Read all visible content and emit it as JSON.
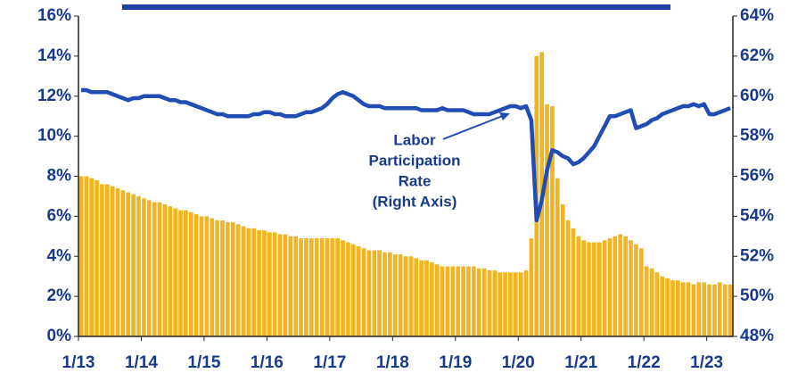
{
  "chart_data": {
    "type": "bar",
    "categories": [
      "1/13",
      null,
      null,
      null,
      null,
      null,
      null,
      null,
      null,
      null,
      null,
      null,
      "1/14",
      null,
      null,
      null,
      null,
      null,
      null,
      null,
      null,
      null,
      null,
      null,
      "1/15",
      null,
      null,
      null,
      null,
      null,
      null,
      null,
      null,
      null,
      null,
      null,
      "1/16",
      null,
      null,
      null,
      null,
      null,
      null,
      null,
      null,
      null,
      null,
      null,
      "1/17",
      null,
      null,
      null,
      null,
      null,
      null,
      null,
      null,
      null,
      null,
      null,
      "1/18",
      null,
      null,
      null,
      null,
      null,
      null,
      null,
      null,
      null,
      null,
      null,
      "1/19",
      null,
      null,
      null,
      null,
      null,
      null,
      null,
      null,
      null,
      null,
      null,
      "1/20",
      null,
      null,
      null,
      null,
      null,
      null,
      null,
      null,
      null,
      null,
      null,
      "1/21",
      null,
      null,
      null,
      null,
      null,
      null,
      null,
      null,
      null,
      null,
      null,
      "1/22",
      null,
      null,
      null,
      null,
      null,
      null,
      null,
      null,
      null,
      null,
      null,
      "1/23",
      null,
      null,
      null,
      null
    ],
    "series": [
      {
        "color": "#f2b51f",
        "values": [
          8.0,
          8.0,
          7.9,
          7.8,
          7.6,
          7.6,
          7.5,
          7.4,
          7.3,
          7.2,
          7.1,
          7.0,
          6.9,
          6.8,
          6.7,
          6.7,
          6.6,
          6.5,
          6.4,
          6.3,
          6.3,
          6.2,
          6.1,
          6.0,
          6.0,
          5.9,
          5.8,
          5.8,
          5.7,
          5.7,
          5.6,
          5.5,
          5.4,
          5.4,
          5.3,
          5.3,
          5.2,
          5.2,
          5.1,
          5.1,
          5.0,
          5.0,
          4.9,
          4.9,
          4.9,
          4.9,
          4.9,
          4.9,
          4.9,
          4.9,
          4.8,
          4.7,
          4.6,
          4.5,
          4.4,
          4.3,
          4.3,
          4.3,
          4.2,
          4.2,
          4.1,
          4.1,
          4.0,
          4.0,
          3.9,
          3.8,
          3.8,
          3.7,
          3.6,
          3.5,
          3.5,
          3.5,
          3.5,
          3.5,
          3.5,
          3.5,
          3.4,
          3.4,
          3.3,
          3.3,
          3.2,
          3.2,
          3.2,
          3.2,
          3.2,
          3.3,
          4.9,
          14.0,
          14.2,
          11.6,
          11.5,
          7.9,
          6.6,
          5.8,
          5.4,
          5.0,
          4.8,
          4.7,
          4.7,
          4.7,
          4.8,
          4.9,
          5.0,
          5.1,
          5.0,
          4.8,
          4.6,
          4.4,
          3.5,
          3.4,
          3.2,
          3.0,
          2.9,
          2.8,
          2.8,
          2.7,
          2.7,
          2.6,
          2.7,
          2.7,
          2.6,
          2.6,
          2.7,
          2.6,
          2.6
        ]
      },
      {
        "type": "line",
        "axis": "y2",
        "color": "#1f4db3",
        "values": [
          60.3,
          60.3,
          60.2,
          60.2,
          60.2,
          60.2,
          60.1,
          60.0,
          59.9,
          59.8,
          59.9,
          59.9,
          60.0,
          60.0,
          60.0,
          60.0,
          59.9,
          59.8,
          59.8,
          59.7,
          59.7,
          59.6,
          59.5,
          59.4,
          59.3,
          59.2,
          59.1,
          59.1,
          59.0,
          59.0,
          59.0,
          59.0,
          59.0,
          59.1,
          59.1,
          59.2,
          59.2,
          59.1,
          59.1,
          59.0,
          59.0,
          59.0,
          59.1,
          59.2,
          59.2,
          59.3,
          59.4,
          59.6,
          59.9,
          60.1,
          60.2,
          60.1,
          60.0,
          59.8,
          59.6,
          59.5,
          59.5,
          59.5,
          59.4,
          59.4,
          59.4,
          59.4,
          59.4,
          59.4,
          59.4,
          59.3,
          59.3,
          59.3,
          59.3,
          59.4,
          59.3,
          59.3,
          59.3,
          59.3,
          59.2,
          59.1,
          59.1,
          59.1,
          59.1,
          59.2,
          59.3,
          59.4,
          59.5,
          59.5,
          59.4,
          59.5,
          58.8,
          53.8,
          54.8,
          56.3,
          57.3,
          57.2,
          57.0,
          56.9,
          56.6,
          56.7,
          56.9,
          57.2,
          57.5,
          58.0,
          58.5,
          59.0,
          59.0,
          59.1,
          59.2,
          59.3,
          58.4,
          58.5,
          58.6,
          58.8,
          58.9,
          59.1,
          59.2,
          59.3,
          59.4,
          59.5,
          59.5,
          59.6,
          59.5,
          59.6,
          59.1,
          59.1,
          59.2,
          59.3,
          59.4
        ]
      }
    ],
    "ylim": [
      0,
      16
    ],
    "yticks": [
      {
        "value": 0,
        "label": "0%"
      },
      {
        "value": 2,
        "label": "2%"
      },
      {
        "value": 4,
        "label": "4%"
      },
      {
        "value": 6,
        "label": "6%"
      },
      {
        "value": 8,
        "label": "8%"
      },
      {
        "value": 10,
        "label": "10%"
      },
      {
        "value": 12,
        "label": "12%"
      },
      {
        "value": 14,
        "label": "14%"
      },
      {
        "value": 16,
        "label": "16%"
      }
    ],
    "y2lim": [
      48,
      64
    ],
    "y2ticks": [
      {
        "value": 48,
        "label": "48%"
      },
      {
        "value": 50,
        "label": "50%"
      },
      {
        "value": 52,
        "label": "52%"
      },
      {
        "value": 54,
        "label": "54%"
      },
      {
        "value": 56,
        "label": "56%"
      },
      {
        "value": 58,
        "label": "58%"
      },
      {
        "value": 60,
        "label": "60%"
      },
      {
        "value": 62,
        "label": "62%"
      },
      {
        "value": 64,
        "label": "64%"
      }
    ],
    "annotation": [
      "Labor",
      "Participation",
      "Rate",
      "(Right Axis)"
    ]
  }
}
